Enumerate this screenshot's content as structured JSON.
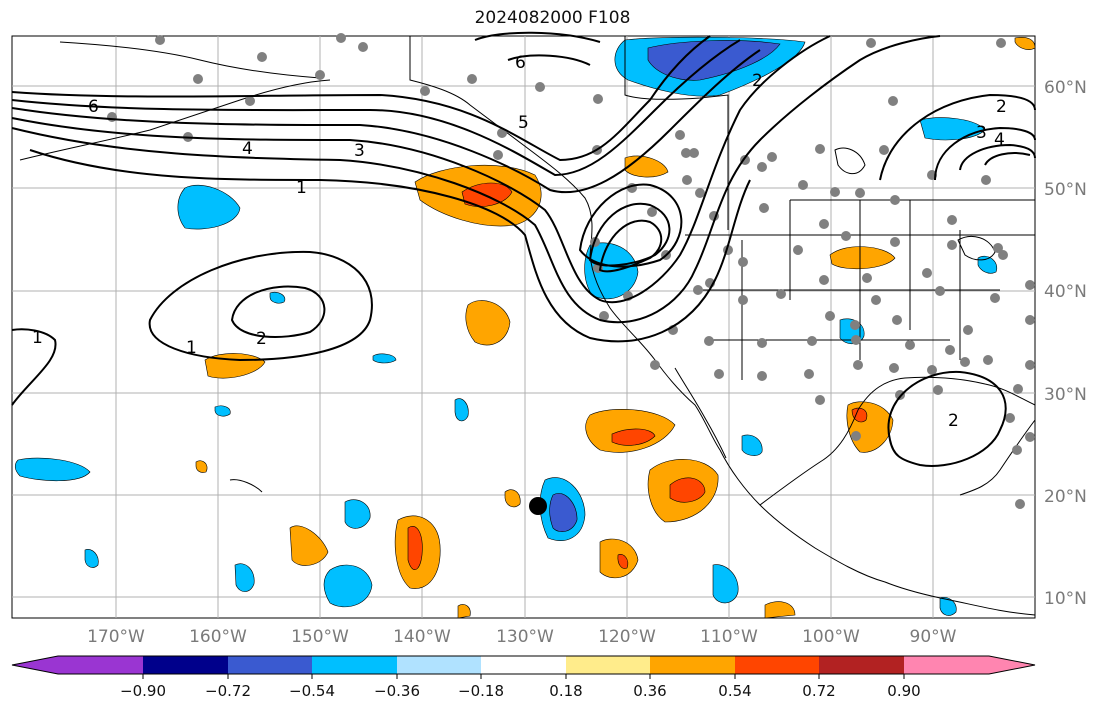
{
  "title": "2024082000 F108",
  "map": {
    "lon_labels": [
      "170°W",
      "160°W",
      "150°W",
      "140°W",
      "130°W",
      "120°W",
      "110°W",
      "100°W",
      "90°W"
    ],
    "lat_labels": [
      "60°N",
      "50°N",
      "40°N",
      "30°N",
      "20°N",
      "10°N"
    ],
    "contour_labels": [
      "6",
      "5",
      "4",
      "3",
      "2",
      "1",
      "1",
      "1",
      "2",
      "2",
      "3",
      "4",
      "2",
      "6"
    ]
  },
  "colorbar": {
    "tick_labels": [
      "−0.90",
      "−0.72",
      "−0.54",
      "−0.36",
      "−0.18",
      "0.18",
      "0.36",
      "0.54",
      "0.72",
      "0.90"
    ],
    "colors": [
      "#9a35d2",
      "#00008b",
      "#3a5ad0",
      "#00bfff",
      "#b0e2ff",
      "#ffffff",
      "#ffec8b",
      "#ffa500",
      "#ff4500",
      "#b22222",
      "#ff85b0"
    ]
  }
}
